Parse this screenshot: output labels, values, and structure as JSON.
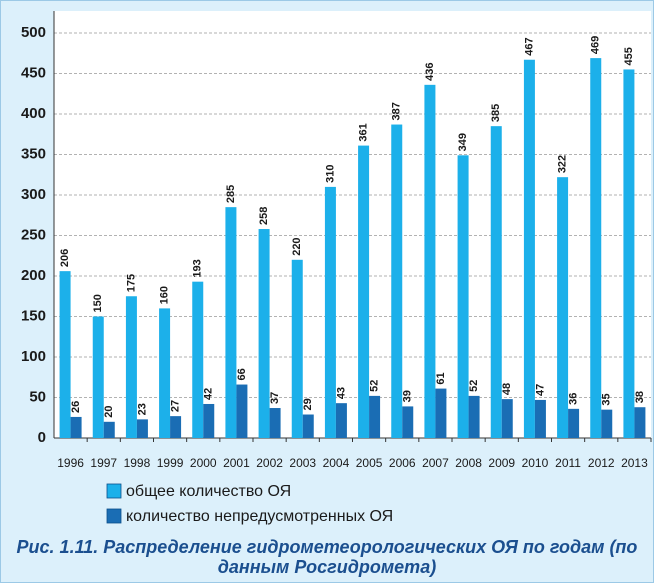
{
  "chart_data": {
    "type": "bar",
    "title": "Рис. 1.11. Распределение гидрометеорологических ОЯ по годам (по данным Росгидромета)",
    "categories": [
      "1996",
      "1997",
      "1998",
      "1999",
      "2000",
      "2001",
      "2002",
      "2003",
      "2004",
      "2005",
      "2006",
      "2007",
      "2008",
      "2009",
      "2010",
      "2011",
      "2012",
      "2013"
    ],
    "series": [
      {
        "name": "общее количество ОЯ",
        "color": "#1cb0ea",
        "values": [
          206,
          150,
          175,
          160,
          193,
          285,
          258,
          220,
          310,
          361,
          387,
          436,
          349,
          385,
          467,
          322,
          469,
          455
        ]
      },
      {
        "name": "количество непредусмотренных ОЯ",
        "color": "#1a6db4",
        "values": [
          26,
          20,
          23,
          27,
          42,
          66,
          37,
          29,
          43,
          52,
          39,
          61,
          52,
          48,
          47,
          36,
          35,
          38
        ]
      }
    ],
    "ylim": [
      0,
      500
    ],
    "yticks": [
      0,
      50,
      100,
      150,
      200,
      250,
      300,
      350,
      400,
      450,
      500
    ],
    "grid": true
  }
}
